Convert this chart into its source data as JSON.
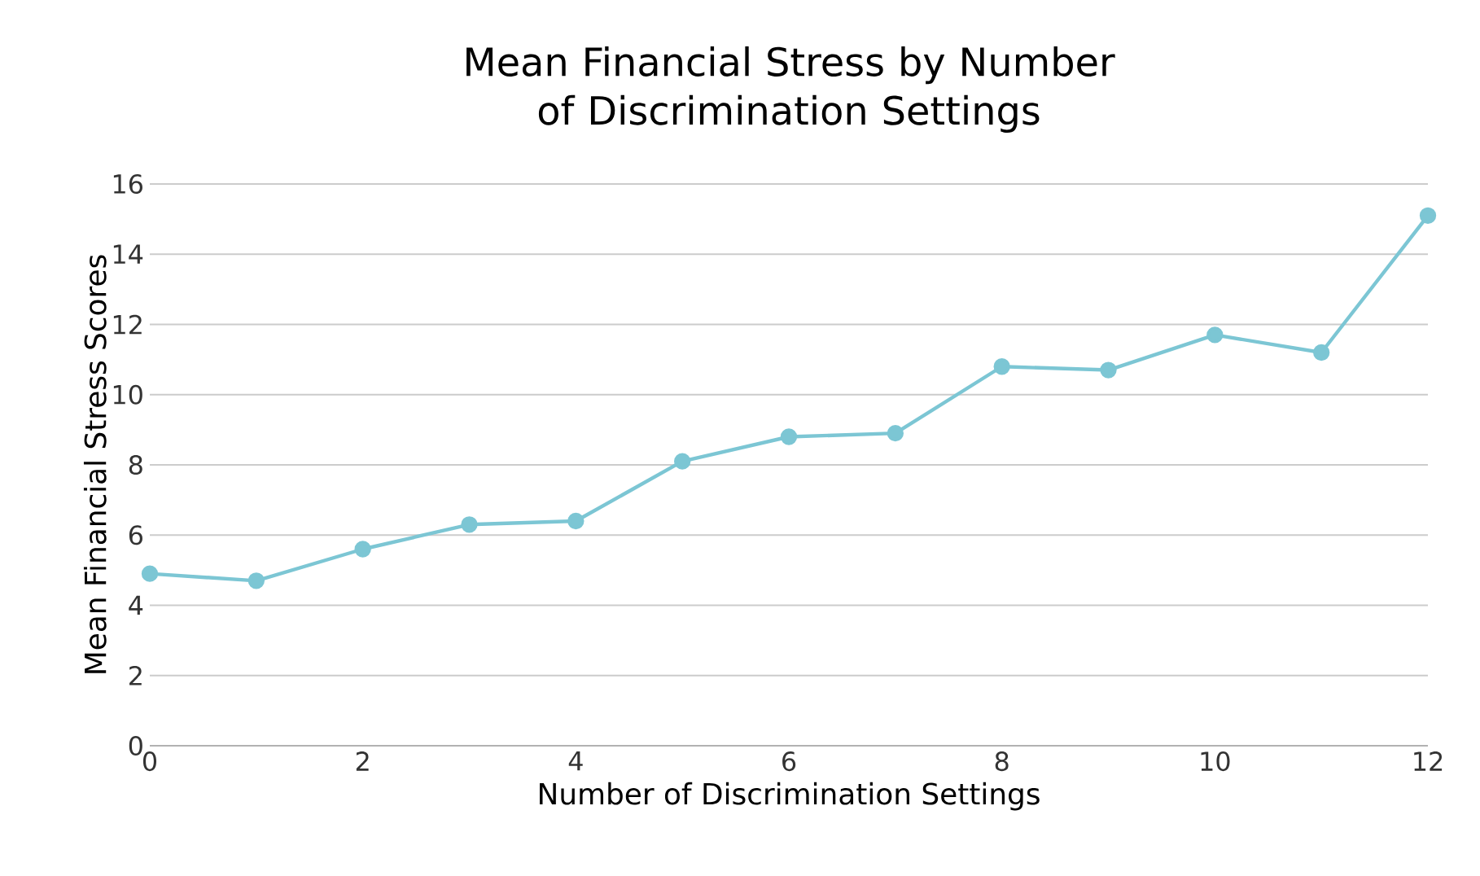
{
  "chart_data": {
    "type": "line",
    "title": "Mean Financial Stress by Number of Discrimination Settings",
    "xlabel": "Number of Discrimination Settings",
    "ylabel": "Mean Financial Stress Scores",
    "x": [
      0,
      1,
      2,
      3,
      4,
      5,
      6,
      7,
      8,
      9,
      10,
      11,
      12
    ],
    "series": [
      {
        "color": "#7cc6d4",
        "values": [
          4.9,
          4.7,
          5.6,
          6.3,
          6.4,
          8.1,
          8.8,
          8.9,
          10.8,
          10.7,
          11.7,
          11.2,
          15.1
        ]
      }
    ],
    "xlim": [
      0,
      12
    ],
    "xticks": [
      0,
      2,
      4,
      6,
      8,
      10,
      12
    ],
    "ylim": [
      0,
      16
    ],
    "yticks": [
      0,
      2,
      4,
      6,
      8,
      10,
      12,
      14,
      16
    ],
    "grid": "y",
    "marker": "circle",
    "line_style": "solid"
  }
}
